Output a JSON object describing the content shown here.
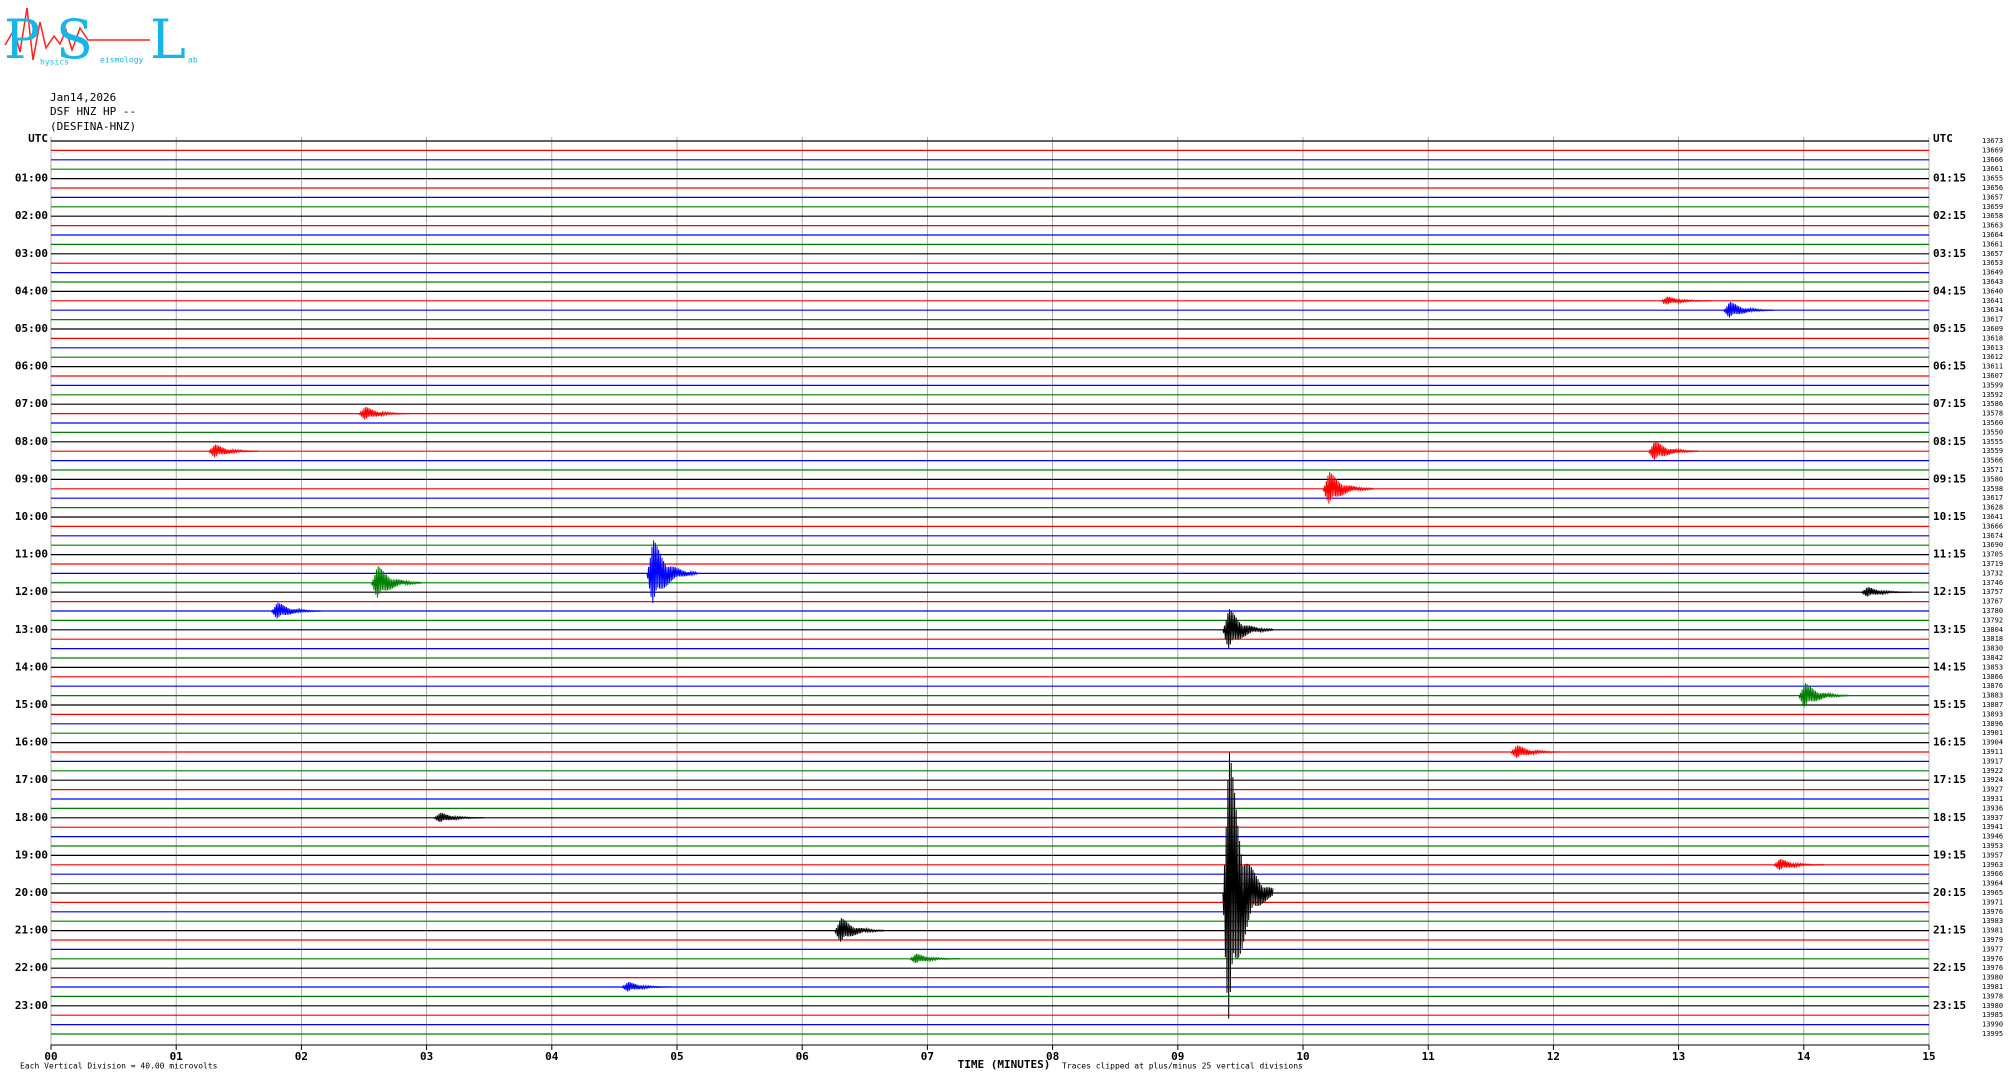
{
  "chart_data": {
    "type": "helicorder",
    "logo": {
      "letters": [
        "P",
        "S",
        "L"
      ],
      "small": [
        "hysics",
        "eismology",
        "ab"
      ]
    },
    "header": [
      "Jan14,2026",
      "DSF HNZ HP --",
      "(DESFINA-HNZ)"
    ],
    "left_labels": [
      "UTC",
      "01:00",
      "02:00",
      "03:00",
      "04:00",
      "05:00",
      "06:00",
      "07:00",
      "08:00",
      "09:00",
      "10:00",
      "11:00",
      "12:00",
      "13:00",
      "14:00",
      "15:00",
      "16:00",
      "17:00",
      "18:00",
      "19:00",
      "20:00",
      "21:00",
      "22:00",
      "23:00"
    ],
    "right_labels": [
      "UTC",
      "01:15",
      "02:15",
      "03:15",
      "04:15",
      "05:15",
      "06:15",
      "07:15",
      "08:15",
      "09:15",
      "10:15",
      "11:15",
      "12:15",
      "13:15",
      "14:15",
      "15:15",
      "16:15",
      "17:15",
      "18:15",
      "19:15",
      "20:15",
      "21:15",
      "22:15",
      "23:15"
    ],
    "row_counts": [
      13673,
      13669,
      13666,
      13661,
      13655,
      13656,
      13657,
      13659,
      13658,
      13663,
      13664,
      13661,
      13657,
      13653,
      13649,
      13643,
      13640,
      13641,
      13634,
      13617,
      13609,
      13618,
      13613,
      13612,
      13611,
      13607,
      13599,
      13592,
      13586,
      13578,
      13560,
      13550,
      13555,
      13559,
      13566,
      13571,
      13580,
      13598,
      13617,
      13628,
      13641,
      13666,
      13674,
      13690,
      13705,
      13719,
      13732,
      13746,
      13757,
      13767,
      13780,
      13792,
      13804,
      13818,
      13830,
      13842,
      13853,
      13866,
      13876,
      13883,
      13887,
      13893,
      13896,
      13901,
      13904,
      13911,
      13917,
      13922,
      13924,
      13927,
      13931,
      13936,
      13937,
      13941,
      13946,
      13953,
      13957,
      13963,
      13966,
      13964,
      13965,
      13971,
      13976,
      13983,
      13981,
      13979,
      13977,
      13976,
      13976,
      13980,
      13981,
      13978,
      13980,
      13985,
      13990,
      13995
    ],
    "colors": [
      "#000000",
      "#ff0000",
      "#0000ff",
      "#008000"
    ],
    "xlabel": "TIME (MINUTES)",
    "xlim": [
      0,
      15
    ],
    "xticks": [
      {
        "value": 0,
        "label": "00"
      },
      {
        "value": 1,
        "label": "01"
      },
      {
        "value": 2,
        "label": "02"
      },
      {
        "value": 3,
        "label": "03"
      },
      {
        "value": 4,
        "label": "04"
      },
      {
        "value": 5,
        "label": "05"
      },
      {
        "value": 6,
        "label": "06"
      },
      {
        "value": 7,
        "label": "07"
      },
      {
        "value": 8,
        "label": "08"
      },
      {
        "value": 9,
        "label": "09"
      },
      {
        "value": 10,
        "label": "10"
      },
      {
        "value": 11,
        "label": "11"
      },
      {
        "value": 12,
        "label": "12"
      },
      {
        "value": 13,
        "label": "13"
      },
      {
        "value": 14,
        "label": "14"
      },
      {
        "value": 15,
        "label": "15"
      }
    ],
    "scale_note": "Each Vertical Division =   40.00 microvolts",
    "clip_note": "Traces clipped at plus/minus 25 vertical divisions",
    "events": [
      {
        "row": 52,
        "minute": 9.4,
        "amplitude": 2.5
      },
      {
        "row": 80,
        "minute": 9.4,
        "amplitude": 17
      },
      {
        "row": 37,
        "minute": 10.2,
        "amplitude": 2
      },
      {
        "row": 46,
        "minute": 4.8,
        "amplitude": 4
      },
      {
        "row": 47,
        "minute": 2.6,
        "amplitude": 2
      },
      {
        "row": 84,
        "minute": 6.3,
        "amplitude": 1.5
      },
      {
        "row": 18,
        "minute": 13.4,
        "amplitude": 1
      },
      {
        "row": 17,
        "minute": 12.9,
        "amplitude": 0.5
      },
      {
        "row": 33,
        "minute": 12.8,
        "amplitude": 1.2
      },
      {
        "row": 33,
        "minute": 1.3,
        "amplitude": 0.8
      },
      {
        "row": 29,
        "minute": 2.5,
        "amplitude": 0.8
      },
      {
        "row": 50,
        "minute": 1.8,
        "amplitude": 1
      },
      {
        "row": 59,
        "minute": 14,
        "amplitude": 1.5
      },
      {
        "row": 65,
        "minute": 11.7,
        "amplitude": 0.8
      },
      {
        "row": 87,
        "minute": 6.9,
        "amplitude": 0.6
      },
      {
        "row": 90,
        "minute": 4.6,
        "amplitude": 0.6
      },
      {
        "row": 72,
        "minute": 3.1,
        "amplitude": 0.6
      },
      {
        "row": 48,
        "minute": 14.5,
        "amplitude": 0.6
      },
      {
        "row": 77,
        "minute": 13.8,
        "amplitude": 0.7
      }
    ]
  }
}
